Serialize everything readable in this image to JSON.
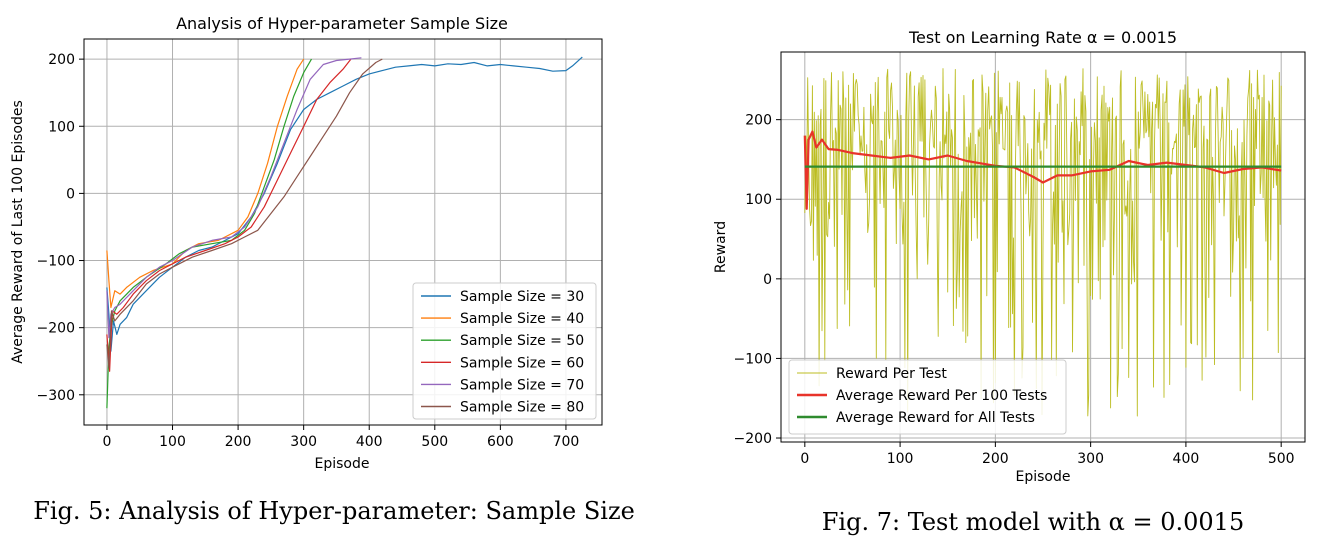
{
  "figures": [
    {
      "caption": "Fig. 5: Analysis of Hyper-parameter: Sample Size"
    },
    {
      "caption": "Fig. 7: Test model with α = 0.0015"
    }
  ],
  "chart_data": [
    {
      "type": "line",
      "title": "Analysis of Hyper-parameter Sample Size",
      "xlabel": "Episode",
      "ylabel": "Average Reward of Last 100 Episodes",
      "xlim": [
        -35,
        755
      ],
      "ylim": [
        -345,
        230
      ],
      "xticks": [
        0,
        100,
        200,
        300,
        400,
        500,
        600,
        700
      ],
      "yticks": [
        -300,
        -200,
        -100,
        0,
        100,
        200
      ],
      "grid": true,
      "legend_position": "lower-right",
      "series": [
        {
          "name": "Sample Size = 30",
          "color": "#1f77b4",
          "points": [
            [
              0,
              -140
            ],
            [
              3,
              -180
            ],
            [
              6,
              -235
            ],
            [
              10,
              -190
            ],
            [
              15,
              -210
            ],
            [
              20,
              -195
            ],
            [
              30,
              -185
            ],
            [
              40,
              -165
            ],
            [
              60,
              -145
            ],
            [
              80,
              -125
            ],
            [
              100,
              -110
            ],
            [
              120,
              -95
            ],
            [
              140,
              -85
            ],
            [
              160,
              -80
            ],
            [
              180,
              -70
            ],
            [
              200,
              -60
            ],
            [
              220,
              -35
            ],
            [
              240,
              0
            ],
            [
              260,
              45
            ],
            [
              280,
              95
            ],
            [
              300,
              125
            ],
            [
              320,
              140
            ],
            [
              340,
              150
            ],
            [
              360,
              160
            ],
            [
              380,
              170
            ],
            [
              400,
              178
            ],
            [
              420,
              183
            ],
            [
              440,
              188
            ],
            [
              460,
              190
            ],
            [
              480,
              192
            ],
            [
              500,
              190
            ],
            [
              520,
              193
            ],
            [
              540,
              192
            ],
            [
              560,
              195
            ],
            [
              580,
              190
            ],
            [
              600,
              192
            ],
            [
              620,
              190
            ],
            [
              640,
              188
            ],
            [
              660,
              186
            ],
            [
              680,
              182
            ],
            [
              700,
              183
            ],
            [
              710,
              190
            ],
            [
              725,
              203
            ]
          ]
        },
        {
          "name": "Sample Size = 40",
          "color": "#ff7f0e",
          "points": [
            [
              0,
              -85
            ],
            [
              3,
              -130
            ],
            [
              6,
              -170
            ],
            [
              12,
              -145
            ],
            [
              20,
              -150
            ],
            [
              30,
              -140
            ],
            [
              50,
              -125
            ],
            [
              70,
              -115
            ],
            [
              100,
              -105
            ],
            [
              120,
              -85
            ],
            [
              140,
              -75
            ],
            [
              170,
              -70
            ],
            [
              200,
              -55
            ],
            [
              215,
              -35
            ],
            [
              230,
              0
            ],
            [
              245,
              45
            ],
            [
              260,
              100
            ],
            [
              275,
              145
            ],
            [
              290,
              185
            ],
            [
              300,
              200
            ]
          ]
        },
        {
          "name": "Sample Size = 50",
          "color": "#2ca02c",
          "points": [
            [
              0,
              -320
            ],
            [
              3,
              -230
            ],
            [
              6,
              -200
            ],
            [
              12,
              -175
            ],
            [
              20,
              -160
            ],
            [
              40,
              -140
            ],
            [
              60,
              -125
            ],
            [
              90,
              -105
            ],
            [
              110,
              -90
            ],
            [
              130,
              -80
            ],
            [
              160,
              -75
            ],
            [
              190,
              -70
            ],
            [
              210,
              -55
            ],
            [
              225,
              -30
            ],
            [
              240,
              10
            ],
            [
              255,
              50
            ],
            [
              270,
              100
            ],
            [
              285,
              145
            ],
            [
              300,
              180
            ],
            [
              312,
              200
            ]
          ]
        },
        {
          "name": "Sample Size = 60",
          "color": "#d62728",
          "points": [
            [
              0,
              -210
            ],
            [
              4,
              -265
            ],
            [
              8,
              -175
            ],
            [
              15,
              -180
            ],
            [
              25,
              -170
            ],
            [
              40,
              -150
            ],
            [
              60,
              -130
            ],
            [
              80,
              -115
            ],
            [
              100,
              -105
            ],
            [
              120,
              -95
            ],
            [
              150,
              -85
            ],
            [
              180,
              -75
            ],
            [
              200,
              -65
            ],
            [
              220,
              -50
            ],
            [
              240,
              -20
            ],
            [
              260,
              20
            ],
            [
              280,
              60
            ],
            [
              300,
              100
            ],
            [
              320,
              140
            ],
            [
              340,
              165
            ],
            [
              360,
              185
            ],
            [
              372,
              200
            ]
          ]
        },
        {
          "name": "Sample Size = 70",
          "color": "#9467bd",
          "points": [
            [
              0,
              -145
            ],
            [
              3,
              -215
            ],
            [
              6,
              -180
            ],
            [
              12,
              -170
            ],
            [
              20,
              -165
            ],
            [
              40,
              -145
            ],
            [
              60,
              -125
            ],
            [
              80,
              -110
            ],
            [
              100,
              -100
            ],
            [
              130,
              -80
            ],
            [
              160,
              -70
            ],
            [
              190,
              -65
            ],
            [
              210,
              -50
            ],
            [
              230,
              -20
            ],
            [
              250,
              25
            ],
            [
              270,
              75
            ],
            [
              290,
              125
            ],
            [
              310,
              170
            ],
            [
              330,
              192
            ],
            [
              350,
              198
            ],
            [
              370,
              200
            ],
            [
              388,
              202
            ]
          ]
        },
        {
          "name": "Sample Size = 80",
          "color": "#8c564b",
          "points": [
            [
              0,
              -225
            ],
            [
              3,
              -260
            ],
            [
              7,
              -175
            ],
            [
              12,
              -190
            ],
            [
              20,
              -180
            ],
            [
              40,
              -160
            ],
            [
              60,
              -135
            ],
            [
              80,
              -120
            ],
            [
              100,
              -110
            ],
            [
              130,
              -95
            ],
            [
              160,
              -85
            ],
            [
              190,
              -75
            ],
            [
              210,
              -65
            ],
            [
              230,
              -55
            ],
            [
              250,
              -30
            ],
            [
              270,
              -5
            ],
            [
              290,
              25
            ],
            [
              310,
              55
            ],
            [
              330,
              85
            ],
            [
              350,
              115
            ],
            [
              370,
              150
            ],
            [
              390,
              178
            ],
            [
              410,
              195
            ],
            [
              420,
              200
            ]
          ]
        }
      ]
    },
    {
      "type": "line",
      "title": "Test on Learning Rate α = 0.0015",
      "xlabel": "Episode",
      "ylabel": "Reward",
      "xlim": [
        -25,
        525
      ],
      "ylim": [
        -205,
        285
      ],
      "xticks": [
        0,
        100,
        200,
        300,
        400,
        500
      ],
      "yticks": [
        -200,
        -100,
        0,
        100,
        200
      ],
      "grid": true,
      "legend_position": "lower-left",
      "series": [
        {
          "name": "Reward Per Test",
          "color": "#bcbd22",
          "range": [
            -175,
            265
          ],
          "count": 500
        },
        {
          "name": "Average Reward Per 100 Tests",
          "color": "#e8332a",
          "points": [
            [
              0,
              180
            ],
            [
              2,
              88
            ],
            [
              4,
              175
            ],
            [
              8,
              185
            ],
            [
              12,
              165
            ],
            [
              18,
              175
            ],
            [
              25,
              163
            ],
            [
              35,
              162
            ],
            [
              50,
              158
            ],
            [
              70,
              155
            ],
            [
              90,
              152
            ],
            [
              110,
              155
            ],
            [
              130,
              150
            ],
            [
              150,
              155
            ],
            [
              170,
              148
            ],
            [
              190,
              144
            ],
            [
              200,
              142
            ],
            [
              220,
              140
            ],
            [
              240,
              128
            ],
            [
              250,
              121
            ],
            [
              265,
              130
            ],
            [
              280,
              130
            ],
            [
              300,
              135
            ],
            [
              320,
              137
            ],
            [
              340,
              148
            ],
            [
              360,
              143
            ],
            [
              380,
              146
            ],
            [
              400,
              143
            ],
            [
              420,
              140
            ],
            [
              440,
              133
            ],
            [
              460,
              138
            ],
            [
              480,
              140
            ],
            [
              500,
              136
            ]
          ]
        },
        {
          "name": "Average Reward for All Tests",
          "color": "#2e8b2e",
          "points": [
            [
              0,
              141
            ],
            [
              500,
              141
            ]
          ]
        }
      ]
    }
  ]
}
